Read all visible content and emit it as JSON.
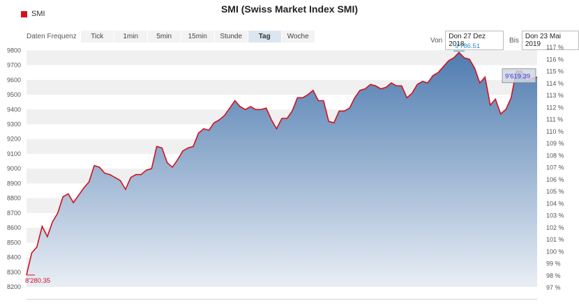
{
  "title": "SMI (Swiss Market Index SMI)",
  "legend": {
    "label": "SMI",
    "color": "#d0101e"
  },
  "frequency": {
    "label": "Daten Frequenz",
    "options": [
      "Tick",
      "1min",
      "5min",
      "15min",
      "Stunde",
      "Tag",
      "Woche"
    ],
    "selected": "Tag"
  },
  "range": {
    "from_label": "Von",
    "from_value": "Don 27 Dez 2018",
    "to_label": "Bis",
    "to_value": "Don 23 Mai 2019"
  },
  "colors": {
    "line": "#d0101e",
    "area_top": "#4f7cb0",
    "area_bottom": "#e9eef5",
    "band": "#f0f0f0"
  },
  "chart_data": {
    "type": "area",
    "series": [
      {
        "name": "SMI",
        "values": [
          8280.35,
          8430,
          8470,
          8610,
          8540,
          8640,
          8700,
          8810,
          8830,
          8770,
          8820,
          8870,
          8910,
          9020,
          9010,
          8970,
          8960,
          8940,
          8920,
          8860,
          8940,
          8960,
          8960,
          8990,
          9000,
          9150,
          9140,
          9040,
          9010,
          9060,
          9120,
          9140,
          9150,
          9240,
          9270,
          9260,
          9310,
          9330,
          9360,
          9410,
          9460,
          9420,
          9400,
          9420,
          9400,
          9400,
          9410,
          9330,
          9270,
          9340,
          9340,
          9390,
          9480,
          9480,
          9500,
          9530,
          9460,
          9460,
          9320,
          9310,
          9390,
          9390,
          9410,
          9480,
          9530,
          9540,
          9570,
          9560,
          9540,
          9550,
          9580,
          9560,
          9560,
          9480,
          9510,
          9570,
          9590,
          9580,
          9630,
          9650,
          9690,
          9730,
          9750,
          9786.51,
          9750,
          9740,
          9680,
          9580,
          9620,
          9430,
          9470,
          9370,
          9400,
          9480,
          9660,
          9660,
          9590,
          9610,
          9619.39
        ]
      }
    ],
    "y_ticks": [
      8200,
      8300,
      8400,
      8500,
      8600,
      8700,
      8800,
      8900,
      9000,
      9100,
      9200,
      9300,
      9400,
      9500,
      9600,
      9700,
      9800
    ],
    "y2_ticks": [
      "97 %",
      "98 %",
      "99 %",
      "100 %",
      "101 %",
      "102 %",
      "103 %",
      "104 %",
      "105 %",
      "106 %",
      "107 %",
      "108 %",
      "109 %",
      "110 %",
      "111 %",
      "112 %",
      "113 %",
      "114 %",
      "115 %",
      "116 %",
      "117 %"
    ],
    "y2_range": [
      97,
      117
    ],
    "ylim": [
      8200,
      9830
    ],
    "min_label": "8'280.35",
    "max_label": "9'786.51",
    "last_label": "9'619.39"
  }
}
